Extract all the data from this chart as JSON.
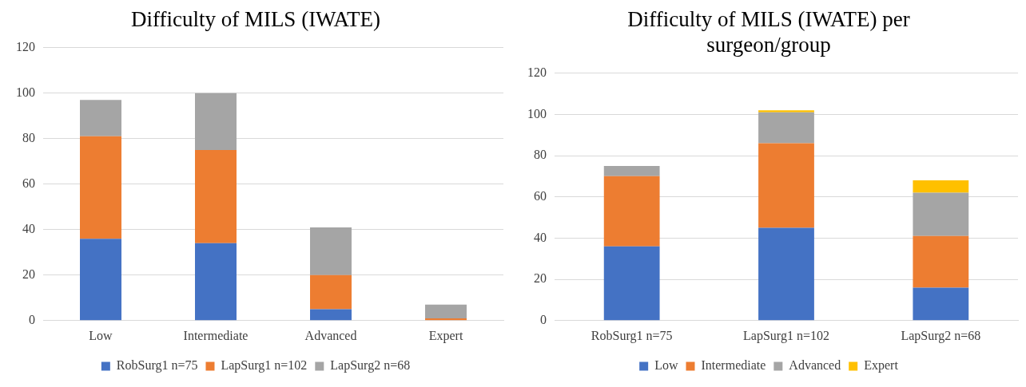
{
  "chart_data": [
    {
      "type": "bar",
      "title": "Difficulty of MILS (IWATE)",
      "categories": [
        "Low",
        "Intermediate",
        "Advanced",
        "Expert"
      ],
      "stacked": true,
      "ylim": [
        0,
        120
      ],
      "yticks": [
        0,
        20,
        40,
        60,
        80,
        100,
        120
      ],
      "grid": "y",
      "legend": "bottom",
      "series": [
        {
          "name": "RobSurg1 n=75",
          "color": "#4472c4",
          "values": [
            36,
            34,
            5,
            0
          ]
        },
        {
          "name": "LapSurg1 n=102",
          "color": "#ed7d31",
          "values": [
            45,
            41,
            15,
            1
          ]
        },
        {
          "name": "LapSurg2 n=68",
          "color": "#a5a5a5",
          "values": [
            16,
            25,
            21,
            6
          ]
        }
      ]
    },
    {
      "type": "bar",
      "title": "Difficulty of MILS (IWATE) per surgeon/group",
      "categories": [
        "RobSurg1 n=75",
        "LapSurg1 n=102",
        "LapSurg2 n=68"
      ],
      "stacked": true,
      "ylim": [
        0,
        120
      ],
      "yticks": [
        0,
        20,
        40,
        60,
        80,
        100,
        120
      ],
      "grid": "y",
      "legend": "bottom",
      "series": [
        {
          "name": "Low",
          "color": "#4472c4",
          "values": [
            36,
            45,
            16
          ]
        },
        {
          "name": "Intermediate",
          "color": "#ed7d31",
          "values": [
            34,
            41,
            25
          ]
        },
        {
          "name": "Advanced",
          "color": "#a5a5a5",
          "values": [
            5,
            15,
            21
          ]
        },
        {
          "name": "Expert",
          "color": "#ffc000",
          "values": [
            0,
            1,
            6
          ]
        }
      ]
    }
  ]
}
